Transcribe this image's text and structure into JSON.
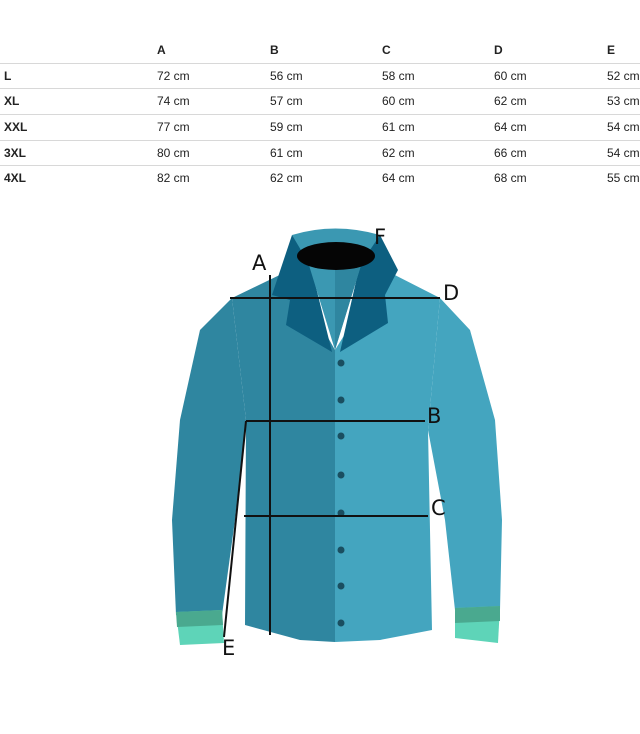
{
  "table": {
    "headers": [
      "",
      "A",
      "B",
      "C",
      "D",
      "E"
    ],
    "rows": [
      {
        "size": "L",
        "values": [
          "72 cm",
          "56 cm",
          "58 cm",
          "60 cm",
          "52 cm"
        ]
      },
      {
        "size": "XL",
        "values": [
          "74 cm",
          "57 cm",
          "60 cm",
          "62 cm",
          "53 cm"
        ]
      },
      {
        "size": "XXL",
        "values": [
          "77 cm",
          "59 cm",
          "61 cm",
          "64 cm",
          "54 cm"
        ]
      },
      {
        "size": "3XL",
        "values": [
          "80 cm",
          "61 cm",
          "62 cm",
          "66 cm",
          "54 cm"
        ]
      },
      {
        "size": "4XL",
        "values": [
          "82 cm",
          "62 cm",
          "64 cm",
          "68 cm",
          "55 cm"
        ]
      }
    ]
  },
  "diagram": {
    "labels": {
      "A": "A",
      "B": "B",
      "C": "C",
      "D": "D",
      "E": "E",
      "F": "F"
    },
    "colors": {
      "shirt_left": "#2f86a0",
      "shirt_right": "#44a5bf",
      "collar": "#0d5f80",
      "cuff": "#5ed4b8"
    }
  }
}
